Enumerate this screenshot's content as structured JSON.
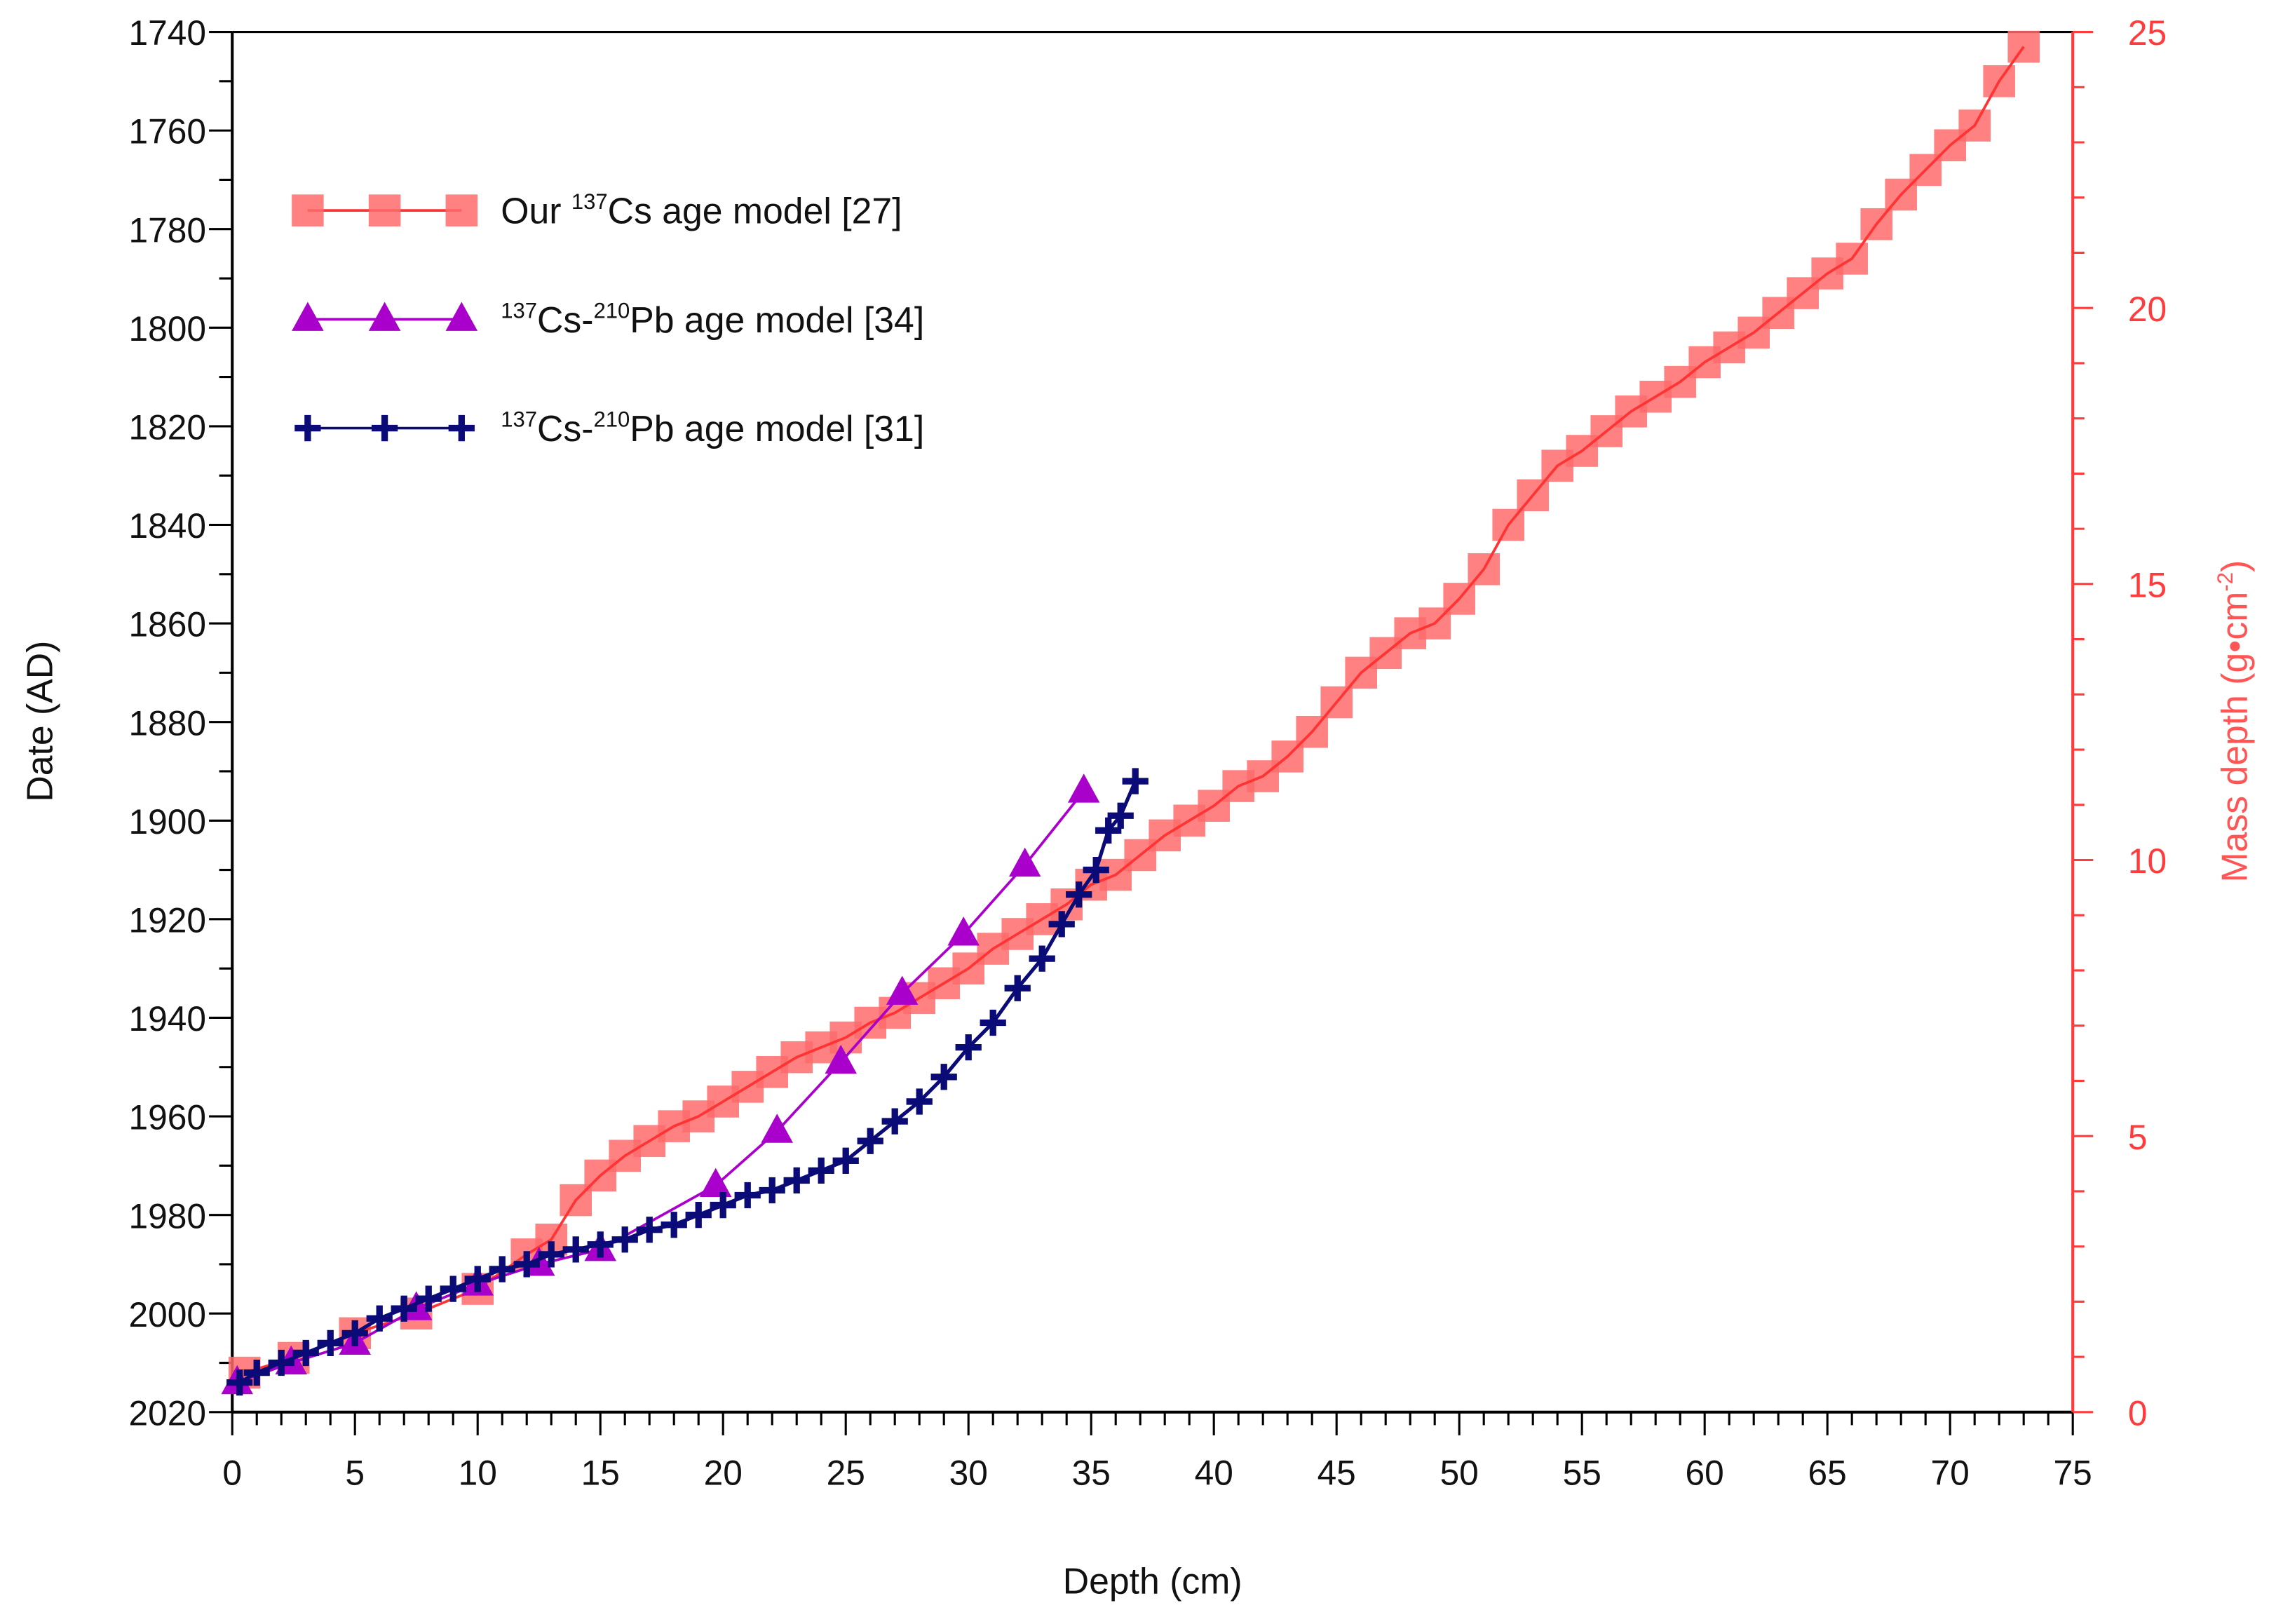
{
  "chart_data": {
    "type": "line",
    "xlabel": "Depth (cm)",
    "ylabel": "Date (AD)",
    "y2label": "Mass depth (g•cm⁻²)",
    "y2label_parts": {
      "main": "Mass depth (g•cm",
      "sup": "-2",
      "end": ")"
    },
    "xlim": [
      0,
      75
    ],
    "ylim": [
      2020,
      1740
    ],
    "y2lim": [
      0,
      25
    ],
    "x_ticks": [
      0,
      5,
      10,
      15,
      20,
      25,
      30,
      35,
      40,
      45,
      50,
      55,
      60,
      65,
      70,
      75
    ],
    "y_ticks": [
      1740,
      1760,
      1780,
      1800,
      1820,
      1840,
      1860,
      1880,
      1900,
      1920,
      1940,
      1960,
      1980,
      2000,
      2020
    ],
    "y2_ticks": [
      0,
      5,
      10,
      15,
      20,
      25
    ],
    "grid": false,
    "legend_position": "top-left",
    "colors": {
      "red": "#ff3333",
      "red_marker": "#ff6b6b",
      "purple": "#aa00cc",
      "navy": "#0b0b78",
      "axis2": "#ff3b3b"
    },
    "legend": [
      {
        "pre": "Our ",
        "sup": "137",
        "mid": "Cs age model [27]",
        "sup2": "",
        "post": ""
      },
      {
        "pre": "",
        "sup": "137",
        "mid": "Cs-",
        "sup2": "210",
        "post": "Pb age model [34]"
      },
      {
        "pre": "",
        "sup": "137",
        "mid": "Cs-",
        "sup2": "210",
        "post": "Pb age model [31]"
      }
    ],
    "series": [
      {
        "name": "Our 137Cs age model [27]",
        "marker": "square",
        "x": [
          0.5,
          2.5,
          5,
          7.5,
          10,
          12,
          13,
          14,
          15,
          16,
          17,
          18,
          19,
          20,
          21,
          22,
          23,
          24,
          25,
          26,
          27,
          28,
          29,
          30,
          31,
          32,
          33,
          34,
          35,
          36,
          37,
          38,
          39,
          40,
          41,
          42,
          43,
          44,
          45,
          46,
          47,
          48,
          49,
          50,
          51,
          52,
          53,
          54,
          55,
          56,
          57,
          58,
          59,
          60,
          61,
          62,
          63,
          64,
          65,
          66,
          67,
          68,
          69,
          70,
          71,
          72,
          73
        ],
        "y": [
          2012,
          2009,
          2004,
          2000,
          1995,
          1988,
          1985,
          1977,
          1972,
          1968,
          1965,
          1962,
          1960,
          1957,
          1954,
          1951,
          1948,
          1946,
          1944,
          1941,
          1939,
          1936,
          1933,
          1930,
          1926,
          1923,
          1920,
          1917,
          1913,
          1911,
          1907,
          1903,
          1900,
          1897,
          1893,
          1891,
          1887,
          1882,
          1876,
          1870,
          1866,
          1862,
          1860,
          1855,
          1849,
          1840,
          1834,
          1828,
          1825,
          1821,
          1817,
          1814,
          1811,
          1807,
          1804,
          1801,
          1797,
          1793,
          1789,
          1786,
          1779,
          1773,
          1768,
          1763,
          1759,
          1750,
          1743
        ]
      },
      {
        "name": "137Cs-210Pb age model [34]",
        "marker": "triangle",
        "x": [
          0.2,
          2.4,
          5,
          7.5,
          10,
          12.5,
          15,
          19.7,
          22.2,
          24.8,
          27.3,
          29.8,
          32.3,
          34.7
        ],
        "y": [
          2014,
          2010,
          2006,
          1999,
          1994,
          1990,
          1987,
          1974,
          1963,
          1949,
          1935,
          1923,
          1909,
          1894
        ]
      },
      {
        "name": "137Cs-210Pb age model [31]",
        "marker": "plus",
        "x": [
          0.3,
          1,
          2,
          3,
          4,
          5,
          6,
          7,
          8,
          9,
          10,
          11,
          12,
          13,
          14,
          15,
          16,
          17,
          18,
          19,
          20,
          21,
          22,
          23,
          24,
          25,
          26,
          27,
          28,
          29,
          30,
          31,
          32,
          33,
          33.8,
          34.5,
          35.2,
          35.7,
          36.2,
          36.8
        ],
        "y": [
          2014,
          2012,
          2010,
          2008,
          2006,
          2004,
          2001,
          1999,
          1997,
          1995,
          1993,
          1991,
          1990,
          1988,
          1987,
          1986,
          1985,
          1983,
          1982,
          1980,
          1978,
          1976,
          1975,
          1973,
          1971,
          1969,
          1965,
          1961,
          1957,
          1952,
          1946,
          1941,
          1934,
          1928,
          1921,
          1915,
          1910,
          1902,
          1899,
          1892
        ]
      }
    ]
  }
}
